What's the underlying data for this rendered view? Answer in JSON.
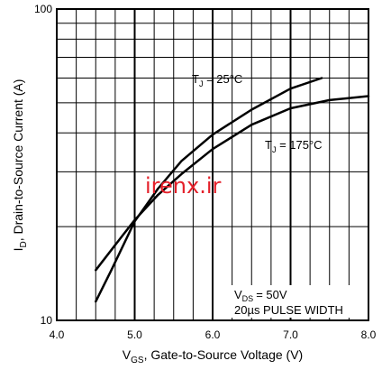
{
  "chart_data": {
    "type": "line",
    "title": "",
    "xlabel": {
      "main": "V",
      "sub": "GS",
      "rest": ", Gate-to-Source Voltage (V)"
    },
    "ylabel": {
      "main": "I",
      "sub": "D",
      "rest": ", Drain-to-Source Current (A)"
    },
    "xlim": [
      4.0,
      8.0
    ],
    "ylim": [
      10,
      100
    ],
    "y_scale": "log",
    "grid": true,
    "x_ticks": [
      "4.0",
      "5.0",
      "6.0",
      "7.0",
      "8.0"
    ],
    "y_ticks": [
      "10",
      "100"
    ],
    "series": [
      {
        "name": "T_J = 25°C",
        "label_main": "T",
        "label_sub": "J",
        "label_rest": " = 25°C",
        "color": "#000000",
        "x": [
          4.5,
          4.7,
          5.0,
          5.3,
          5.6,
          6.0,
          6.5,
          7.0,
          7.4
        ],
        "y": [
          11.5,
          14.5,
          20.8,
          26.5,
          32.5,
          39.5,
          47.5,
          55.5,
          60.0
        ]
      },
      {
        "name": "T_J = 175°C",
        "label_main": "T",
        "label_sub": "J",
        "label_rest": " = 175°C",
        "color": "#000000",
        "x": [
          4.5,
          4.85,
          5.0,
          5.3,
          5.6,
          6.0,
          6.5,
          7.0,
          7.5,
          8.0
        ],
        "y": [
          14.5,
          18.8,
          21.0,
          25.3,
          29.5,
          35.5,
          42.5,
          48.0,
          51.0,
          52.5
        ]
      }
    ],
    "annotations": {
      "vds_main": "V",
      "vds_sub": "DS",
      "vds_rest": "= 50V",
      "pulse": "20µs PULSE WIDTH"
    },
    "watermark": "irenx.ir"
  }
}
